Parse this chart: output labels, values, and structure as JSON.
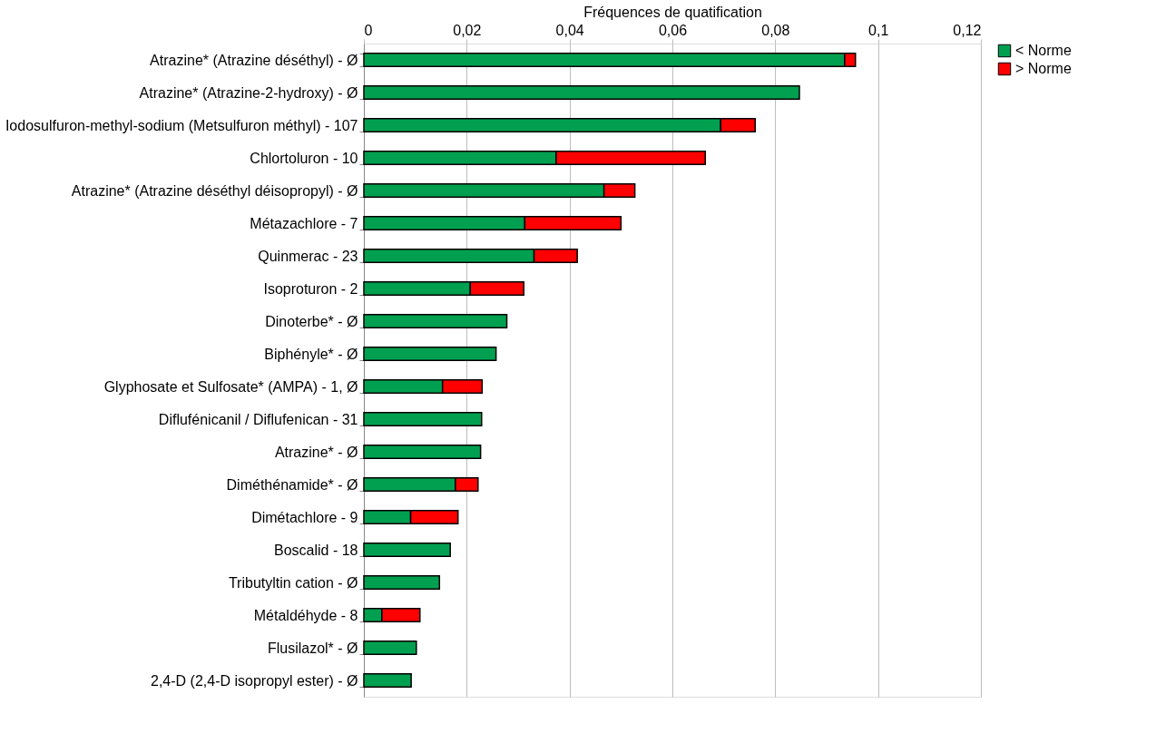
{
  "chart_data": {
    "type": "bar",
    "orientation": "horizontal",
    "stacked": true,
    "xlabel": "Fréquences de quatification",
    "categories": [
      "Atrazine* (Atrazine déséthyl) - Ø",
      "Atrazine* (Atrazine-2-hydroxy) - Ø",
      "Iodosulfuron-methyl-sodium (Metsulfuron méthyl) - 107",
      "Chlortoluron - 10",
      "Atrazine* (Atrazine déséthyl déisopropyl) - Ø",
      "Métazachlore - 7",
      "Quinmerac - 23",
      "Isoproturon - 2",
      "Dinoterbe* - Ø",
      "Biphényle* - Ø",
      "Glyphosate et Sulfosate* (AMPA) - 1, Ø",
      "Diflufénicanil / Diflufenican - 31",
      "Atrazine* - Ø",
      "Diméthénamide* - Ø",
      "Dimétachlore - 9",
      "Boscalid - 18",
      "Tributyltin cation - Ø",
      "Métaldéhyde - 8",
      "Flusilazol* - Ø",
      "2,4-D (2,4-D isopropyl ester) - Ø"
    ],
    "series": [
      {
        "name": "< Norme",
        "color": "#00a050",
        "values": [
          0.0935,
          0.0847,
          0.0694,
          0.0374,
          0.0467,
          0.0313,
          0.0331,
          0.0207,
          0.0278,
          0.0257,
          0.0153,
          0.0229,
          0.0227,
          0.0178,
          0.0091,
          0.0168,
          0.0147,
          0.0035,
          0.0102,
          0.0092
        ]
      },
      {
        "name": "> Norme",
        "color": "#ff0000",
        "values": [
          0.0021,
          null,
          0.0067,
          0.029,
          0.006,
          0.0187,
          0.0084,
          0.0104,
          null,
          null,
          0.0077,
          null,
          null,
          0.0044,
          0.0092,
          null,
          null,
          0.0074,
          null,
          null
        ]
      }
    ],
    "xlim": [
      0,
      0.12
    ],
    "xticks": [
      0,
      {
        "value": 0.02,
        "label": "0,02"
      },
      {
        "value": 0.04,
        "label": "0,04"
      },
      {
        "value": 0.06,
        "label": "0,06"
      },
      {
        "value": 0.08,
        "label": "0,08"
      },
      {
        "value": 0.1,
        "label": "0,1"
      },
      {
        "value": 0.12,
        "label": "0,12"
      }
    ],
    "grid": "x",
    "legend": "right"
  }
}
